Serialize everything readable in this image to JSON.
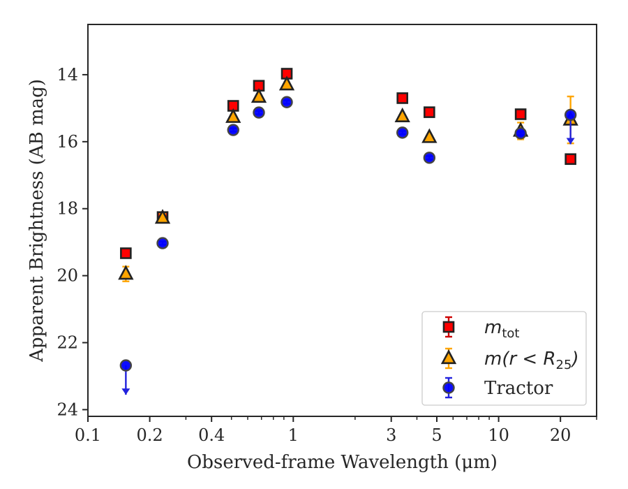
{
  "chart_data": {
    "type": "scatter",
    "title": "",
    "xlabel": "Observed-frame Wavelength (μm)",
    "ylabel": "Apparent Brightness (AB mag)",
    "xscale": "log",
    "xlim": [
      0.1,
      30
    ],
    "ylim": [
      24.2,
      12.5
    ],
    "y_inverted": true,
    "xticks": [
      {
        "value": 0.1,
        "label": "0.1"
      },
      {
        "value": 0.2,
        "label": "0.2"
      },
      {
        "value": 0.4,
        "label": "0.4"
      },
      {
        "value": 1,
        "label": "1"
      },
      {
        "value": 3,
        "label": "3"
      },
      {
        "value": 5,
        "label": "5"
      },
      {
        "value": 10,
        "label": "10"
      },
      {
        "value": 20,
        "label": "20"
      }
    ],
    "yticks": [
      {
        "value": 14,
        "label": "14"
      },
      {
        "value": 16,
        "label": "16"
      },
      {
        "value": 18,
        "label": "18"
      },
      {
        "value": 20,
        "label": "20"
      },
      {
        "value": 22,
        "label": "22"
      },
      {
        "value": 24,
        "label": "24"
      }
    ],
    "legend_position": "bottom-right",
    "series": [
      {
        "key": "mtot",
        "name": "m_tot",
        "legend_main": "m",
        "legend_sub": "tot",
        "legend_rest": "",
        "marker": "square",
        "color": "#ff0000",
        "edge": "#222222",
        "errcolor": "#cc0000",
        "points": [
          {
            "x": 0.153,
            "y": 19.33,
            "err": 0.05
          },
          {
            "x": 0.231,
            "y": 18.25,
            "err": 0.05
          },
          {
            "x": 0.51,
            "y": 14.93,
            "err": 0.05
          },
          {
            "x": 0.68,
            "y": 14.33,
            "err": 0.05
          },
          {
            "x": 0.93,
            "y": 13.97,
            "err": 0.05
          },
          {
            "x": 3.4,
            "y": 14.7,
            "err": 0.05
          },
          {
            "x": 4.6,
            "y": 15.12,
            "err": 0.05
          },
          {
            "x": 12.8,
            "y": 15.18,
            "err": 0.05
          },
          {
            "x": 22.4,
            "y": 16.52,
            "err": 0.05
          }
        ]
      },
      {
        "key": "mr25",
        "name": "m(r < R25)",
        "legend_main": "m(r < R",
        "legend_sub": "25",
        "legend_rest": ")",
        "marker": "triangle",
        "color": "#ffa500",
        "edge": "#222222",
        "errcolor": "#ffa500",
        "points": [
          {
            "x": 0.153,
            "y": 19.95,
            "err": 0.22
          },
          {
            "x": 0.231,
            "y": 18.28,
            "err": 0.12
          },
          {
            "x": 0.51,
            "y": 15.27,
            "err": 0.05
          },
          {
            "x": 0.68,
            "y": 14.67,
            "err": 0.05
          },
          {
            "x": 0.93,
            "y": 14.3,
            "err": 0.05
          },
          {
            "x": 3.4,
            "y": 15.25,
            "err": 0.05
          },
          {
            "x": 4.6,
            "y": 15.87,
            "err": 0.05
          },
          {
            "x": 12.8,
            "y": 15.68,
            "err": 0.25
          },
          {
            "x": 22.4,
            "y": 15.35,
            "err": 0.7
          }
        ]
      },
      {
        "key": "tractor",
        "name": "Tractor",
        "legend_main": "Tractor",
        "legend_sub": "",
        "legend_rest": "",
        "marker": "circle",
        "color": "#0000ff",
        "edge": "#444444",
        "errcolor": "#2222dd",
        "points": [
          {
            "x": 0.153,
            "y": 22.68,
            "err": 0,
            "upper_limit": true
          },
          {
            "x": 0.231,
            "y": 19.03,
            "err": 0.05
          },
          {
            "x": 0.51,
            "y": 15.65,
            "err": 0.05
          },
          {
            "x": 0.68,
            "y": 15.13,
            "err": 0.05
          },
          {
            "x": 0.93,
            "y": 14.82,
            "err": 0.05
          },
          {
            "x": 3.4,
            "y": 15.73,
            "err": 0.05
          },
          {
            "x": 4.6,
            "y": 16.48,
            "err": 0.05
          },
          {
            "x": 12.8,
            "y": 15.75,
            "err": 0.05
          },
          {
            "x": 22.4,
            "y": 15.2,
            "err": 0,
            "upper_limit": true
          }
        ]
      }
    ]
  }
}
